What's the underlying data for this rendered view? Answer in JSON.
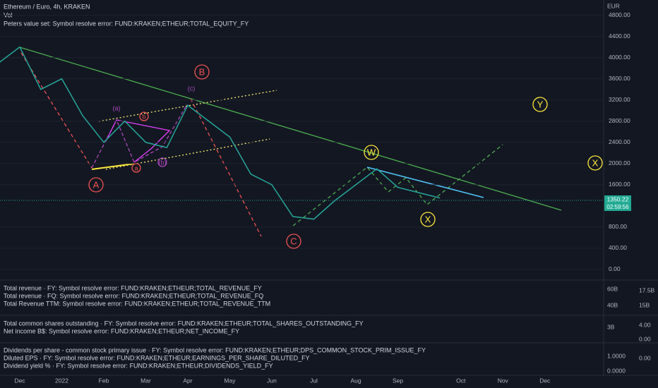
{
  "chart_data": {
    "type": "line",
    "title": "Ethereum / Euro, 4h, KRAKEN",
    "subtitle": "Vol",
    "note": "Peters value set: Symbol resolve error: FUND:KRAKEN;ETHEUR;TOTAL_EQUITY_FY",
    "currency": "EUR",
    "categories": [
      null,
      "Dec",
      null,
      "2022",
      null,
      "Feb",
      null,
      "Mar",
      null,
      "Apr",
      null,
      "May",
      null,
      "Jun",
      null,
      "Jul",
      null,
      "Aug",
      null,
      "Sep",
      null,
      null,
      "Oct",
      null,
      "Nov",
      null,
      "Dec"
    ],
    "values": [
      3900,
      4200,
      3400,
      3600,
      2900,
      2400,
      2800,
      2400,
      2300,
      3100,
      2800,
      2500,
      1800,
      1600,
      1000,
      950,
      1300,
      1600,
      1900,
      1550,
      1450,
      1350,
      null,
      null,
      null,
      null,
      null
    ],
    "color": "#26a69a",
    "ylim": [
      -40,
      5000
    ],
    "yticks": [
      {
        "value": 4800,
        "label": "4800.00"
      },
      {
        "value": 4400,
        "label": "4400.00"
      },
      {
        "value": 4000,
        "label": "4000.00"
      },
      {
        "value": 3600,
        "label": "3600.00"
      },
      {
        "value": 3200,
        "label": "3200.00"
      },
      {
        "value": 2800,
        "label": "2800.00"
      },
      {
        "value": 2400,
        "label": "2400.00"
      },
      {
        "value": 2000,
        "label": "2000.00"
      },
      {
        "value": 1600,
        "label": "1600.00"
      },
      {
        "value": 800,
        "label": "800.00"
      },
      {
        "value": 400,
        "label": "400.00"
      },
      {
        "value": 0,
        "label": "0.00"
      }
    ],
    "last_price": 1350.22,
    "countdown": "02:59:56",
    "annotations": [
      "A",
      "B",
      "C",
      "(a)",
      "b",
      "a",
      "(b)",
      "(c)",
      "W",
      "X",
      "Y",
      "X"
    ]
  },
  "panes": [
    {
      "lines": [
        "Total revenue · FY: Symbol resolve error: FUND:KRAKEN;ETHEUR;TOTAL_REVENUE_FY",
        "Total revenue · FQ: Symbol resolve error: FUND:KRAKEN;ETHEUR;TOTAL_REVENUE_FQ",
        "Total Revenue TTM: Symbol resolve error: FUND:KRAKEN;ETHEUR;TOTAL_REVENUE_TTM"
      ],
      "scale": [
        "60B",
        "17.5B",
        "40B",
        "15B"
      ]
    },
    {
      "lines": [
        "Total common shares outstanding · FY: Symbol resolve error: FUND:KRAKEN;ETHEUR;TOTAL_SHARES_OUTSTANDING_FY",
        "Net income B$: Symbol resolve error: FUND:KRAKEN;ETHEUR;NET_INCOME_FY"
      ],
      "scale": [
        "3B",
        "4.00",
        "0.00"
      ]
    },
    {
      "lines": [
        "Dividends per share - common stock primary issue · FY: Symbol resolve error: FUND:KRAKEN;ETHEUR;DPS_COMMON_STOCK_PRIM_ISSUE_FY",
        "Diluted EPS · FY: Symbol resolve error: FUND:KRAKEN;ETHEUR;EARNINGS_PER_SHARE_DILUTED_FY",
        "Dividend yield % · FY: Symbol resolve error: FUND:KRAKEN;ETHEUR;DIVIDENDS_YIELD_FY"
      ],
      "scale": [
        "1.0000",
        "0.00",
        "0.0000"
      ]
    }
  ]
}
